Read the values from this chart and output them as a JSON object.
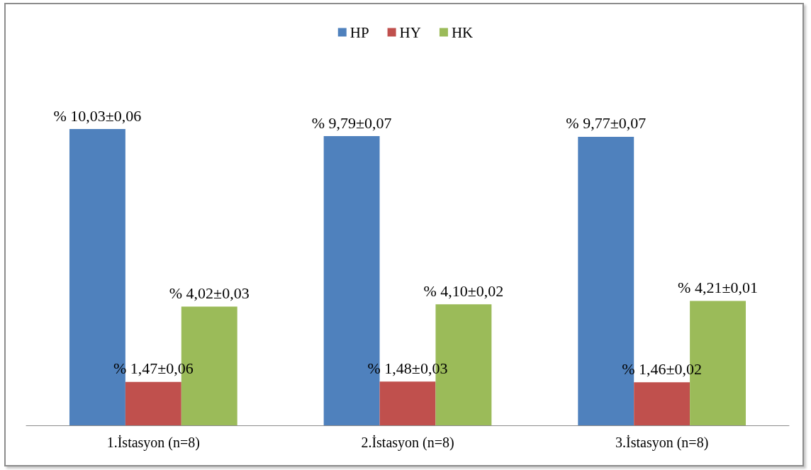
{
  "chart_data": {
    "type": "bar",
    "categories": [
      "1.İstasyon (n=8)",
      "2.İstasyon (n=8)",
      "3.İstasyon (n=8)"
    ],
    "series": [
      {
        "name": "HP",
        "color": "#4f81bd",
        "values": [
          10.03,
          9.79,
          9.77
        ],
        "value_labels": [
          "% 10,03±0,06",
          "% 9,79±0,07",
          "% 9,77±0,07"
        ]
      },
      {
        "name": "HY",
        "color": "#c0504d",
        "values": [
          1.47,
          1.48,
          1.46
        ],
        "value_labels": [
          "% 1,47±0,06",
          "% 1,48±0,03",
          "% 1,46±0,02"
        ]
      },
      {
        "name": "HK",
        "color": "#9bbb59",
        "values": [
          4.02,
          4.1,
          4.21
        ],
        "value_labels": [
          "% 4,02±0,03",
          "% 4,10±0,02",
          "% 4,21±0,01"
        ]
      }
    ],
    "legend": "top",
    "grid": false,
    "tick_labels": "x"
  }
}
